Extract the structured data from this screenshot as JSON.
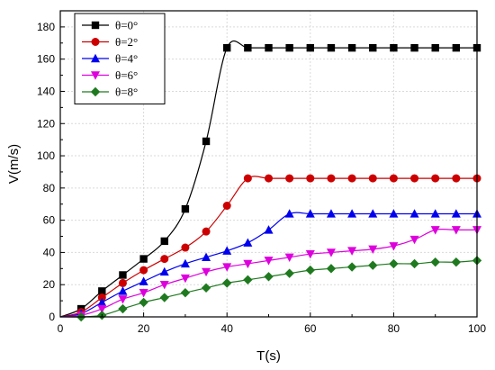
{
  "chart_data": {
    "type": "line",
    "title": "",
    "xlabel": "T(s)",
    "ylabel": "V(m/s)",
    "xlim": [
      0,
      100
    ],
    "ylim": [
      0,
      190
    ],
    "xticks": [
      "0",
      "20",
      "40",
      "60",
      "80",
      "100"
    ],
    "yticks": [
      "0",
      "20",
      "40",
      "60",
      "80",
      "100",
      "120",
      "140",
      "160",
      "180"
    ],
    "grid": true,
    "legend_position": "top-left",
    "series": [
      {
        "name": "θ=0°",
        "color": "#000000",
        "marker": "square",
        "x": [
          5,
          10,
          15,
          20,
          25,
          30,
          35,
          40,
          45,
          50,
          55,
          60,
          65,
          70,
          75,
          80,
          85,
          90,
          95,
          100
        ],
        "y": [
          5,
          16,
          26,
          36,
          47,
          67,
          109,
          167,
          167,
          167,
          167,
          167,
          167,
          167,
          167,
          167,
          167,
          167,
          167,
          167
        ]
      },
      {
        "name": "θ=2°",
        "color": "#cc0000",
        "marker": "circle",
        "x": [
          5,
          10,
          15,
          20,
          25,
          30,
          35,
          40,
          45,
          50,
          55,
          60,
          65,
          70,
          75,
          80,
          85,
          90,
          95,
          100
        ],
        "y": [
          3,
          12,
          21,
          29,
          36,
          43,
          53,
          69,
          86,
          86,
          86,
          86,
          86,
          86,
          86,
          86,
          86,
          86,
          86,
          86
        ]
      },
      {
        "name": "θ=4°",
        "color": "#0000ee",
        "marker": "triangle-up",
        "x": [
          5,
          10,
          15,
          20,
          25,
          30,
          35,
          40,
          45,
          50,
          55,
          60,
          65,
          70,
          75,
          80,
          85,
          90,
          95,
          100
        ],
        "y": [
          2,
          9,
          16,
          22,
          28,
          33,
          37,
          41,
          46,
          54,
          64,
          64,
          64,
          64,
          64,
          64,
          64,
          64,
          64,
          64
        ]
      },
      {
        "name": "θ=6°",
        "color": "#dd00dd",
        "marker": "triangle-down",
        "x": [
          5,
          10,
          15,
          20,
          25,
          30,
          35,
          40,
          45,
          50,
          55,
          60,
          65,
          70,
          75,
          80,
          85,
          90,
          95,
          100
        ],
        "y": [
          1,
          5,
          11,
          15,
          20,
          24,
          28,
          31,
          33,
          35,
          37,
          39,
          40,
          41,
          42,
          44,
          48,
          54,
          54,
          54
        ]
      },
      {
        "name": "θ=8°",
        "color": "#1f7a1f",
        "marker": "diamond",
        "x": [
          5,
          10,
          15,
          20,
          25,
          30,
          35,
          40,
          45,
          50,
          55,
          60,
          65,
          70,
          75,
          80,
          85,
          90,
          95,
          100
        ],
        "y": [
          0,
          1,
          5,
          9,
          12,
          15,
          18,
          21,
          23,
          25,
          27,
          29,
          30,
          31,
          32,
          33,
          33,
          34,
          34,
          35
        ]
      }
    ]
  }
}
